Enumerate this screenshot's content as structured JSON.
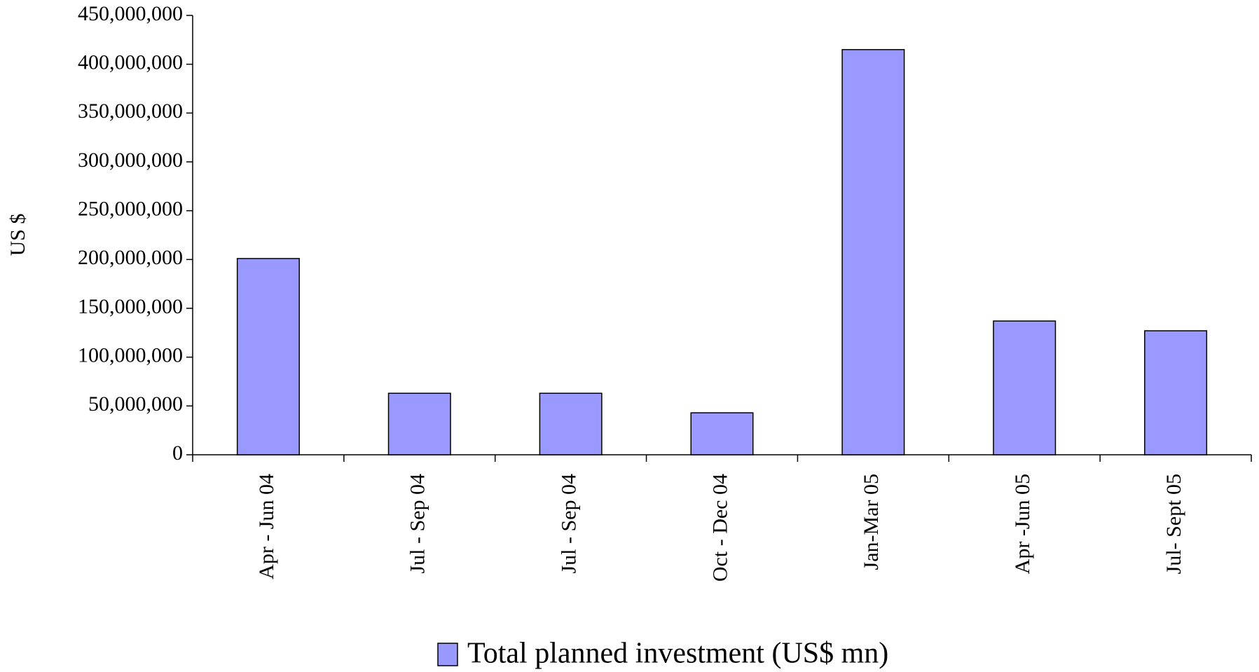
{
  "chart_data": {
    "type": "bar",
    "y_label": "US $",
    "categories": [
      "Apr - Jun 04",
      "Jul - Sep 04",
      "Jul - Sep 04",
      "Oct - Dec 04",
      "Jan-Mar 05",
      "Apr -Jun 05",
      "Jul- Sept 05"
    ],
    "series": [
      {
        "name": "Total planned investment (US$ mn)",
        "color": "#9999ff",
        "values": [
          201000000,
          63000000,
          63000000,
          43000000,
          415000000,
          137000000,
          127000000
        ]
      }
    ],
    "ylim": [
      0,
      450000000
    ],
    "yticks": [
      0,
      {
        "value": 50000000,
        "label": "50,000,000"
      },
      {
        "value": 100000000,
        "label": "100,000,000"
      },
      {
        "value": 150000000,
        "label": "150,000,000"
      },
      {
        "value": 200000000,
        "label": "200,000,000"
      },
      {
        "value": 250000000,
        "label": "250,000,000"
      },
      {
        "value": 300000000,
        "label": "300,000,000"
      },
      {
        "value": 350000000,
        "label": "350,000,000"
      },
      {
        "value": 400000000,
        "label": "400,000,000"
      },
      {
        "value": 450000000,
        "label": "450,000,000"
      }
    ],
    "grid": false,
    "legend": "bottom"
  }
}
